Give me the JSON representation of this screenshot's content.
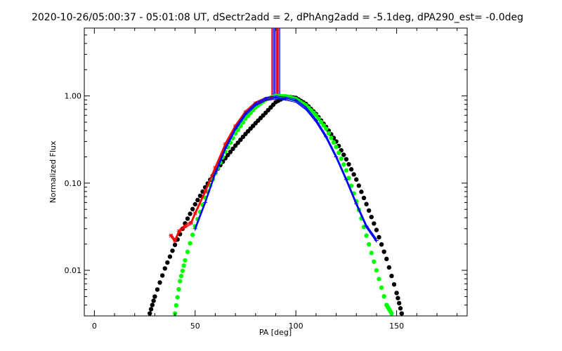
{
  "chart_data": {
    "type": "scatter",
    "title": "2020-10-26/05:00:37 - 05:01:08 UT, dSectr2add = 2, dPhAng2add = -5.1deg, dPA290_est= -0.0deg",
    "xlabel": "PA [deg]",
    "ylabel": "Normalized Flux",
    "xlim": [
      -5,
      185
    ],
    "ylim": [
      0.003,
      6.0
    ],
    "yscale": "log",
    "x_ticks": [
      0,
      50,
      100,
      150
    ],
    "x_tick_labels": [
      "0",
      "50",
      "100",
      "150"
    ],
    "y_ticks": [
      0.01,
      0.1,
      1.0
    ],
    "y_tick_labels": [
      "0.01",
      "0.10",
      "1.00"
    ],
    "grid": false,
    "colors": {
      "red": "#ff0000",
      "blue": "#0000ff",
      "green": "#00ff00",
      "black": "#000000"
    },
    "series": [
      {
        "color": "black",
        "style": "thick-dotted",
        "x": [
          27.5,
          30,
          35,
          40,
          45,
          50,
          55,
          60,
          65,
          70,
          75,
          80,
          85,
          90,
          95,
          100,
          105,
          110,
          115,
          120,
          125,
          130,
          135,
          140,
          145,
          150,
          152.5
        ],
        "y": [
          0.0032,
          0.005,
          0.0105,
          0.0196,
          0.0345,
          0.0572,
          0.0895,
          0.134,
          0.193,
          0.269,
          0.366,
          0.487,
          0.64,
          0.85,
          0.98,
          0.95,
          0.81,
          0.62,
          0.44,
          0.3,
          0.188,
          0.11,
          0.0575,
          0.029,
          0.0135,
          0.0055,
          0.0032
        ]
      },
      {
        "color": "green",
        "style": "thick-dotted",
        "x": [
          40,
          42.5,
          45,
          50,
          55,
          60,
          65,
          70,
          75,
          80,
          85,
          90,
          95,
          100,
          105,
          110,
          115,
          120,
          125,
          130,
          135,
          140,
          145,
          147.5
        ],
        "y": [
          0.0032,
          0.0075,
          0.013,
          0.032,
          0.068,
          0.13,
          0.23,
          0.37,
          0.55,
          0.74,
          0.91,
          1.0,
          0.99,
          0.92,
          0.78,
          0.6,
          0.42,
          0.26,
          0.14,
          0.062,
          0.025,
          0.01,
          0.004,
          0.0032
        ]
      },
      {
        "color": "red",
        "style": "lines-with-markers",
        "x": [
          38,
          40,
          42,
          45,
          48,
          50,
          55,
          60,
          65,
          70,
          75,
          80,
          85,
          88
        ],
        "y": [
          0.025,
          0.022,
          0.028,
          0.032,
          0.035,
          0.045,
          0.08,
          0.15,
          0.28,
          0.45,
          0.65,
          0.82,
          0.92,
          0.95
        ]
      },
      {
        "color": "blue",
        "style": "lines-with-markers",
        "x": [
          50,
          55,
          60,
          65,
          70,
          75,
          80,
          85,
          90,
          95,
          100,
          105,
          110,
          115,
          120,
          125,
          130,
          135,
          140
        ],
        "y": [
          0.03,
          0.06,
          0.13,
          0.25,
          0.42,
          0.62,
          0.8,
          0.92,
          0.96,
          0.93,
          0.88,
          0.72,
          0.52,
          0.34,
          0.2,
          0.11,
          0.058,
          0.032,
          0.022
        ]
      }
    ],
    "annotations": {
      "vertical_bar": {
        "x": [
          88,
          92
        ],
        "y": [
          1.0,
          6.0
        ],
        "colors": [
          "#ff0000",
          "#0000ff"
        ]
      }
    }
  }
}
